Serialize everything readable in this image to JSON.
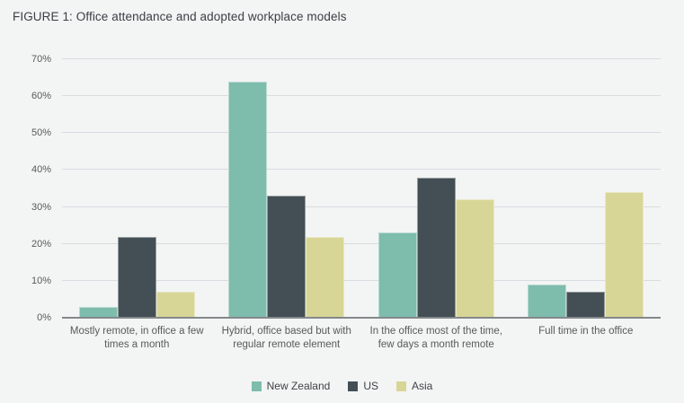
{
  "page": {
    "background": "#f3f4f4"
  },
  "chart_data": {
    "type": "bar",
    "title": "FIGURE 1: Office attendance and adopted workplace models",
    "categories": [
      "Mostly remote, in office a few times a month",
      "Hybrid, office based but with regular remote element",
      "In the office most of the time, few days a month remote",
      "Full time in the office"
    ],
    "category_lines": [
      [
        "Mostly remote, in office a few",
        "times a month"
      ],
      [
        "Hybrid, office based but with",
        "regular remote element"
      ],
      [
        "In the office most of the time,",
        "few days a month remote"
      ],
      [
        "Full time in the office"
      ]
    ],
    "series": [
      {
        "name": "New Zealand",
        "color": "#7ebcac",
        "values": [
          3,
          64,
          23,
          9
        ]
      },
      {
        "name": "US",
        "color": "#434f54",
        "values": [
          22,
          33,
          38,
          7
        ]
      },
      {
        "name": "Asia",
        "color": "#d8d696",
        "values": [
          7,
          22,
          32,
          34
        ]
      }
    ],
    "xlabel": "",
    "ylabel": "",
    "ylim": [
      0,
      70
    ],
    "ytick_step": 10,
    "ytick_labels": [
      "0%",
      "10%",
      "20%",
      "30%",
      "40%",
      "50%",
      "60%",
      "70%"
    ],
    "grid": "horizontal",
    "legend_position": "bottom"
  },
  "colors": {
    "gridline": "#d8dce0",
    "axis_line": "#84888b",
    "tick_text": "#595959",
    "title_text": "#3b4045",
    "legend_text": "#3f4448"
  }
}
